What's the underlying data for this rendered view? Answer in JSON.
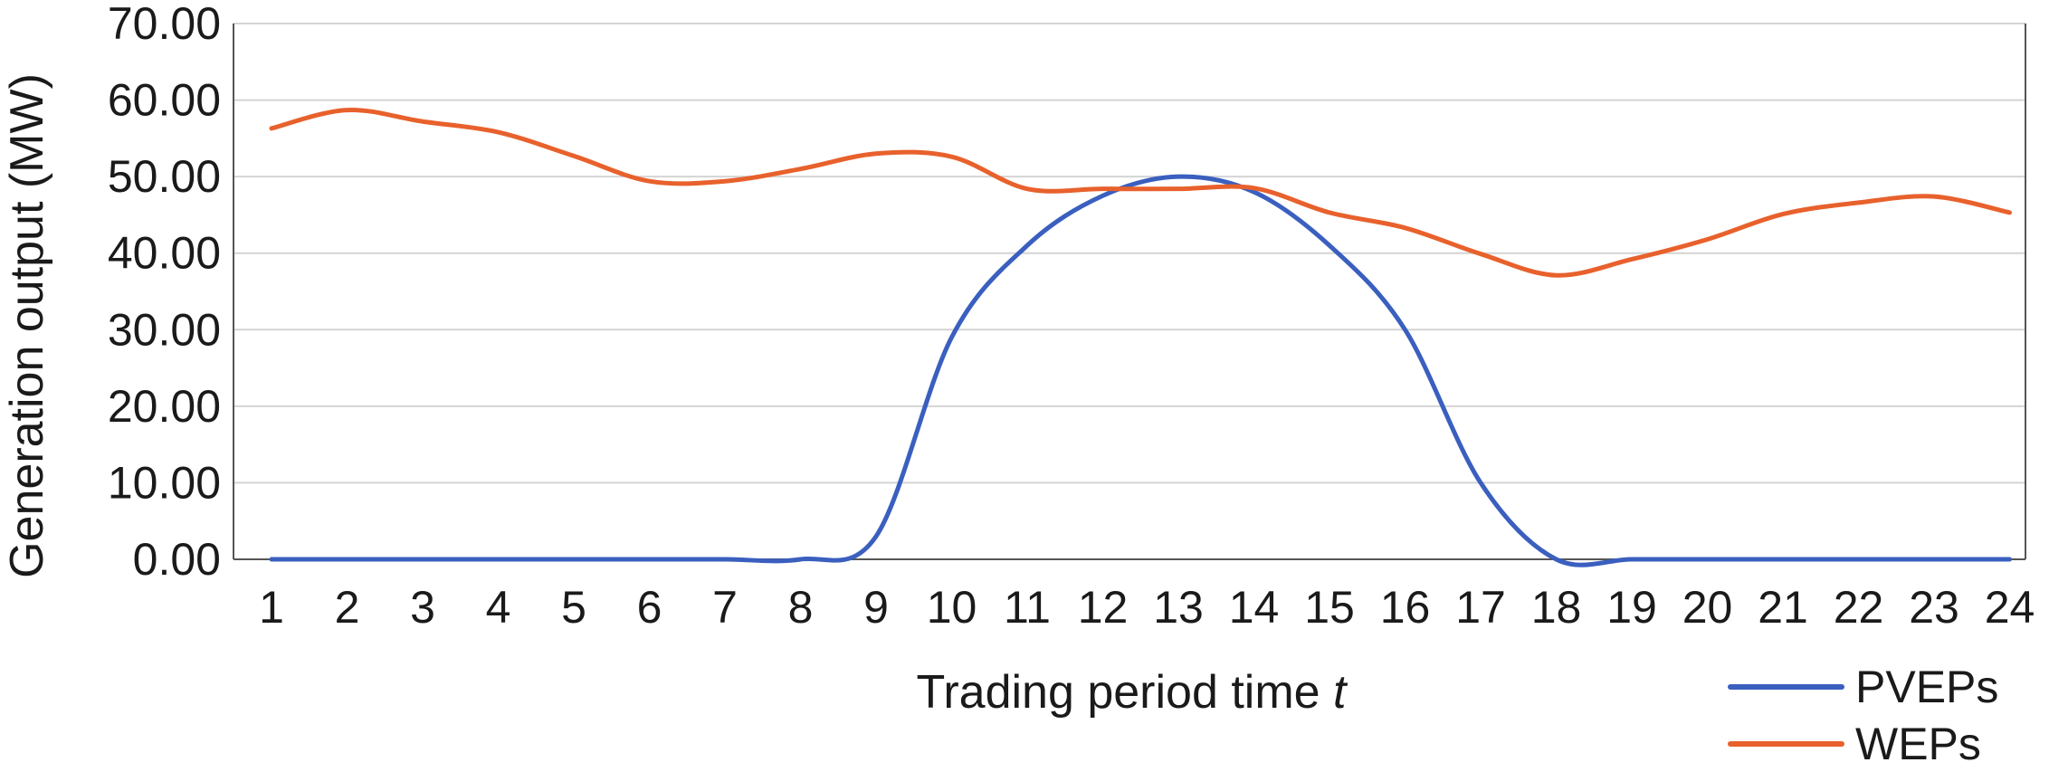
{
  "chart_data": {
    "type": "line",
    "title": "",
    "xlabel": "Trading period time",
    "xlabel_var": "t",
    "ylabel": "Generation output (MW)",
    "ylim": [
      0,
      70
    ],
    "yticks": [
      "0.00",
      "10.00",
      "20.00",
      "30.00",
      "40.00",
      "50.00",
      "60.00",
      "70.00"
    ],
    "categories": [
      "1",
      "2",
      "3",
      "4",
      "5",
      "6",
      "7",
      "8",
      "9",
      "10",
      "11",
      "12",
      "13",
      "14",
      "15",
      "16",
      "17",
      "18",
      "19",
      "20",
      "21",
      "22",
      "23",
      "24"
    ],
    "grid": true,
    "legend_position": "bottom-right",
    "series": [
      {
        "name": "PVEPs",
        "color": "#3a5fbf",
        "values": [
          0,
          0,
          0,
          0,
          0,
          0,
          0,
          0,
          3,
          29,
          41,
          47.5,
          50,
          48,
          41,
          30,
          10,
          0,
          0,
          0,
          0,
          0,
          0,
          0
        ]
      },
      {
        "name": "WEPs",
        "color": "#e8612c",
        "values": [
          56.3,
          58.7,
          57.2,
          55.8,
          52.7,
          49.4,
          49.4,
          51.0,
          53.0,
          52.6,
          48.4,
          48.4,
          48.4,
          48.5,
          45.3,
          43.3,
          39.9,
          37.1,
          39.2,
          41.8,
          45.1,
          46.6,
          47.4,
          45.3
        ]
      }
    ]
  }
}
